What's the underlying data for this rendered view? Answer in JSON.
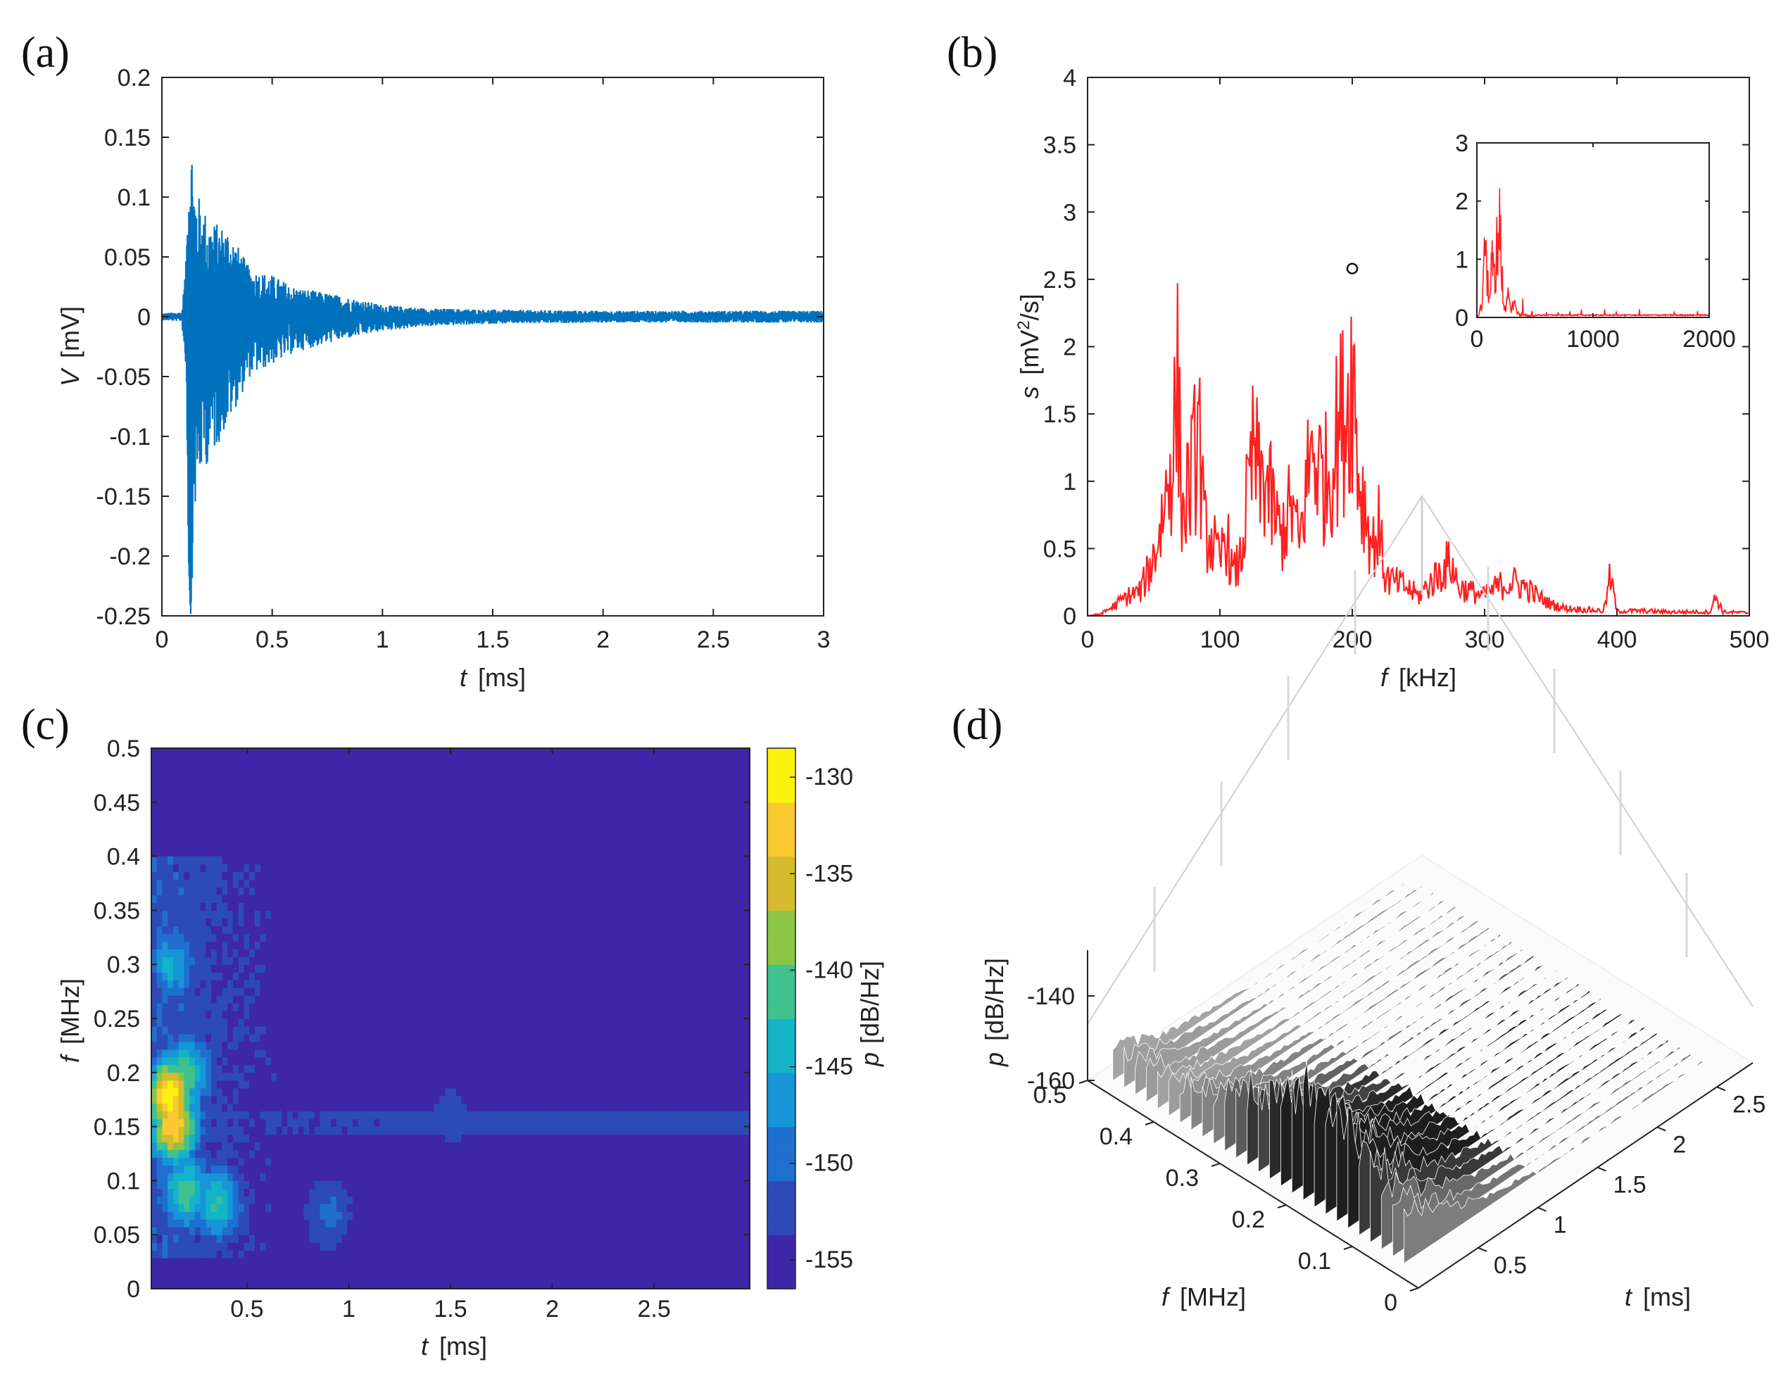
{
  "chart_data": [
    {
      "panel": "(a)",
      "type": "line",
      "xlabel_var": "t",
      "xlabel_unit": "[ms]",
      "ylabel_var": "V",
      "ylabel_unit": "[mV]",
      "xlim": [
        0,
        3
      ],
      "ylim": [
        -0.25,
        0.2
      ],
      "xticks": [
        "0",
        "0.5",
        "1",
        "1.5",
        "2",
        "2.5",
        "3"
      ],
      "yticks": [
        "-0.25",
        "-0.2",
        "-0.15",
        "-0.1",
        "-0.05",
        "0",
        "0.05",
        "0.1",
        "0.15",
        "0.2"
      ],
      "grid": false,
      "series": [
        {
          "color": "#0072BD",
          "envelope_t": [
            0,
            0.09,
            0.11,
            0.12,
            0.13,
            0.15,
            0.18,
            0.22,
            0.3,
            0.4,
            0.5,
            0.6,
            0.8,
            1.0,
            1.2,
            1.5,
            2.0,
            3.0
          ],
          "envelope_upper": [
            0.003,
            0.004,
            0.05,
            0.14,
            0.165,
            0.11,
            0.095,
            0.08,
            0.075,
            0.04,
            0.035,
            0.025,
            0.018,
            0.01,
            0.007,
            0.006,
            0.005,
            0.005
          ],
          "envelope_lower": [
            -0.003,
            -0.004,
            -0.05,
            -0.2,
            -0.25,
            -0.165,
            -0.13,
            -0.12,
            -0.09,
            -0.05,
            -0.04,
            -0.03,
            -0.02,
            -0.012,
            -0.008,
            -0.006,
            -0.005,
            -0.005
          ]
        }
      ]
    },
    {
      "panel": "(b)",
      "type": "line",
      "xlabel_var": "f",
      "xlabel_unit": "[kHz]",
      "ylabel_var": "s",
      "ylabel_unit_pre": "[mV",
      "ylabel_unit_sup": "2",
      "ylabel_unit_post": "/s]",
      "xlim": [
        0,
        500
      ],
      "ylim": [
        0,
        4
      ],
      "xticks": [
        "0",
        "100",
        "200",
        "300",
        "400",
        "500"
      ],
      "yticks": [
        "0",
        "0.5",
        "1",
        "1.5",
        "2",
        "2.5",
        "3",
        "3.5",
        "4"
      ],
      "grid": false,
      "series": [
        {
          "color": "#FF2020",
          "peaks_f": [
            0,
            10,
            20,
            30,
            40,
            50,
            55,
            60,
            65,
            68,
            72,
            76,
            80,
            84,
            88,
            92,
            96,
            100,
            104,
            110,
            116,
            120,
            126,
            130,
            134,
            138,
            142,
            146,
            150,
            155,
            160,
            165,
            170,
            175,
            180,
            185,
            190,
            195,
            198,
            200,
            202,
            205,
            210,
            215,
            220,
            225,
            230,
            240,
            250,
            260,
            270,
            275,
            280,
            290,
            300,
            310,
            320,
            330,
            340,
            350,
            360,
            380,
            390,
            395,
            400,
            420,
            440,
            460,
            470,
            475,
            480,
            500
          ],
          "peaks_s": [
            0.0,
            0.02,
            0.1,
            0.2,
            0.25,
            0.6,
            0.9,
            1.3,
            1.8,
            2.3,
            1.0,
            1.3,
            1.5,
            1.97,
            0.9,
            0.8,
            0.7,
            0.5,
            0.9,
            0.4,
            0.6,
            1.1,
            1.72,
            1.3,
            1.45,
            1.2,
            1.0,
            0.8,
            1.0,
            1.1,
            0.7,
            1.3,
            1.75,
            1.5,
            1.4,
            1.6,
            1.95,
            2.1,
            2.3,
            2.58,
            2.2,
            1.4,
            1.1,
            0.7,
            0.9,
            0.4,
            0.35,
            0.3,
            0.2,
            0.35,
            0.5,
            0.55,
            0.3,
            0.25,
            0.2,
            0.3,
            0.35,
            0.3,
            0.2,
            0.12,
            0.08,
            0.06,
            0.05,
            0.4,
            0.05,
            0.05,
            0.04,
            0.04,
            0.04,
            0.2,
            0.04,
            0.03
          ],
          "marker_f": 200,
          "marker_s": 2.58
        }
      ],
      "inset": {
        "xlim": [
          0,
          2000
        ],
        "ylim": [
          0,
          3
        ],
        "xticks": [
          "0",
          "1000",
          "2000"
        ],
        "yticks": [
          "0",
          "1",
          "2",
          "3"
        ]
      }
    },
    {
      "panel": "(c)",
      "type": "heatmap",
      "xlabel_var": "t",
      "xlabel_unit": "[ms]",
      "ylabel_var": "f",
      "ylabel_unit": "[MHz]",
      "xlim": [
        0.03,
        2.97
      ],
      "ylim": [
        0,
        0.5
      ],
      "xticks": [
        "0.5",
        "1",
        "1.5",
        "2",
        "2.5"
      ],
      "yticks": [
        "0",
        "0.05",
        "0.1",
        "0.15",
        "0.2",
        "0.25",
        "0.3",
        "0.35",
        "0.4",
        "0.45",
        "0.5"
      ],
      "colorbar": {
        "label_var": "p",
        "label_unit": "[dB/Hz]",
        "range": [
          -156.5,
          -128.5
        ],
        "ticks": [
          "-130",
          "-135",
          "-140",
          "-145",
          "-150",
          "-155"
        ],
        "colormap": [
          "#3E26A8",
          "#2C4BB7",
          "#1F6FCF",
          "#1695D7",
          "#14B3C7",
          "#3FC28D",
          "#8BC545",
          "#D5BA2E",
          "#FAC82F",
          "#F9F20F"
        ]
      },
      "hotspots": [
        {
          "t": 0.12,
          "f": 0.18,
          "dB": -129
        },
        {
          "t": 0.14,
          "f": 0.15,
          "dB": -131
        },
        {
          "t": 0.2,
          "f": 0.2,
          "dB": -140
        },
        {
          "t": 0.2,
          "f": 0.09,
          "dB": -140
        },
        {
          "t": 0.35,
          "f": 0.08,
          "dB": -142
        },
        {
          "t": 0.13,
          "f": 0.3,
          "dB": -145
        },
        {
          "t": 0.9,
          "f": 0.07,
          "dB": -150
        },
        {
          "t": 1.5,
          "f": 0.16,
          "dB": -152
        }
      ]
    },
    {
      "panel": "(d)",
      "type": "surface",
      "xlabel_var": "t",
      "xlabel_unit": "[ms]",
      "ylabel_var": "f",
      "ylabel_unit": "[MHz]",
      "zlabel_var": "p",
      "zlabel_unit": "[dB/Hz]",
      "xticks": [
        "0.5",
        "1",
        "1.5",
        "2",
        "2.5"
      ],
      "yticks": [
        "0",
        "0.1",
        "0.2",
        "0.3",
        "0.4",
        "0.5"
      ],
      "zticks": [
        "-160",
        "-140"
      ],
      "colormap": "gray",
      "grid": true
    }
  ]
}
